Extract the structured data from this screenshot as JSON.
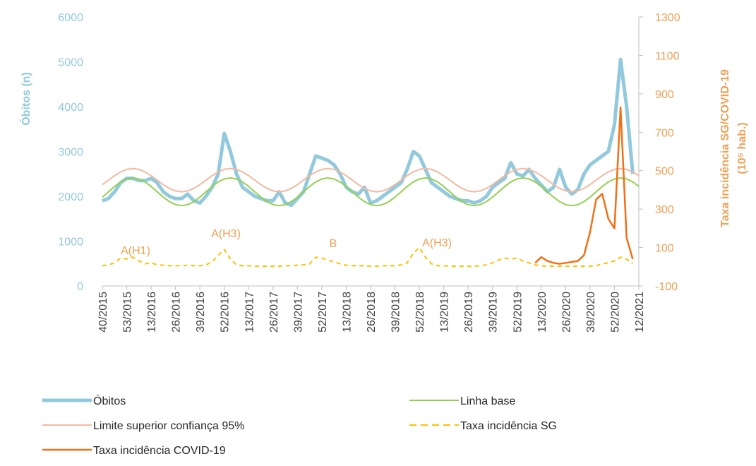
{
  "chart_data": {
    "type": "line",
    "y_label": "Óbitos (n)",
    "y2_label": [
      "Taxa incidência SG/COVID-19",
      "(10⁵ hab.)"
    ],
    "annotations": [
      "A(H1)",
      "A(H3)",
      "B",
      "A(H3)"
    ],
    "categories": [
      "40/2015",
      null,
      null,
      null,
      "53/2015",
      null,
      null,
      null,
      "13/2016",
      null,
      null,
      null,
      "26/2016",
      null,
      null,
      null,
      "39/2016",
      null,
      null,
      null,
      "52/2016",
      null,
      null,
      null,
      "13/2017",
      null,
      null,
      null,
      "26/2017",
      null,
      null,
      null,
      "39/2017",
      null,
      null,
      null,
      "52/2017",
      null,
      null,
      null,
      "13/2018",
      null,
      null,
      null,
      "26/2018",
      null,
      null,
      null,
      "39/2018",
      null,
      null,
      null,
      "52/2018",
      null,
      null,
      null,
      "13/2019",
      null,
      null,
      null,
      "26/2019",
      null,
      null,
      null,
      "39/2019",
      null,
      null,
      null,
      "52/2019",
      null,
      null,
      null,
      "13/2020",
      null,
      null,
      null,
      "26/2020",
      null,
      null,
      null,
      "39/2020",
      null,
      null,
      null,
      "52/2020",
      null,
      null,
      null,
      "12/2021"
    ],
    "ylim": [
      0,
      6000
    ],
    "yticks": [
      0,
      1000,
      2000,
      3000,
      4000,
      5000,
      6000
    ],
    "y2lim": [
      -100,
      1300
    ],
    "y2ticks": [
      -100,
      100,
      300,
      500,
      700,
      900,
      1100,
      1300
    ],
    "series": [
      {
        "name": "Óbitos",
        "color": "#92c9dc",
        "values": [
          1900,
          1950,
          2100,
          2300,
          2400,
          2400,
          2350,
          2350,
          2400,
          2300,
          2100,
          2000,
          1950,
          1950,
          2050,
          1900,
          1850,
          2000,
          2200,
          2500,
          3400,
          3000,
          2500,
          2200,
          2100,
          2000,
          1950,
          1900,
          1900,
          2100,
          1850,
          1800,
          1950,
          2100,
          2500,
          2900,
          2850,
          2800,
          2700,
          2500,
          2200,
          2100,
          2050,
          2200,
          1850,
          1900,
          2000,
          2100,
          2200,
          2300,
          2600,
          3000,
          2900,
          2600,
          2300,
          2200,
          2100,
          2000,
          1950,
          1900,
          1900,
          1850,
          1900,
          2000,
          2200,
          2300,
          2400,
          2750,
          2500,
          2450,
          2600,
          2400,
          2250,
          2100,
          2200,
          2600,
          2200,
          2050,
          2150,
          2500,
          2700,
          2800,
          2900,
          3000,
          3600,
          5050,
          4000,
          2500,
          null
        ]
      },
      {
        "name": "Linha base",
        "color": "#92d050",
        "values": [
          1981,
          2100,
          2219,
          2319,
          2386,
          2410,
          2386,
          2319,
          2219,
          2100,
          1981,
          1881,
          1814,
          1790,
          1814,
          1881,
          1981,
          2100,
          2219,
          2319,
          2386,
          2410,
          2386,
          2319,
          2219,
          2100,
          1981,
          1881,
          1814,
          1790,
          1814,
          1881,
          1981,
          2100,
          2219,
          2319,
          2386,
          2410,
          2386,
          2319,
          2219,
          2100,
          1981,
          1881,
          1814,
          1790,
          1814,
          1881,
          1981,
          2100,
          2219,
          2319,
          2386,
          2410,
          2386,
          2319,
          2219,
          2100,
          1981,
          1881,
          1814,
          1790,
          1814,
          1881,
          1981,
          2100,
          2219,
          2319,
          2386,
          2410,
          2386,
          2319,
          2219,
          2100,
          1981,
          1881,
          1814,
          1790,
          1814,
          1881,
          1981,
          2100,
          2219,
          2319,
          2386,
          2410,
          2386,
          2319,
          2219
        ]
      },
      {
        "name": "Limite superior confiança 95%",
        "color": "#f4b8a0",
        "values": [
          2260,
          2360,
          2460,
          2544,
          2600,
          2620,
          2600,
          2544,
          2460,
          2360,
          2260,
          2176,
          2120,
          2100,
          2120,
          2176,
          2260,
          2360,
          2460,
          2544,
          2600,
          2620,
          2600,
          2544,
          2460,
          2360,
          2260,
          2176,
          2120,
          2100,
          2120,
          2176,
          2260,
          2360,
          2460,
          2544,
          2600,
          2620,
          2600,
          2544,
          2460,
          2360,
          2260,
          2176,
          2120,
          2100,
          2120,
          2176,
          2260,
          2360,
          2460,
          2544,
          2600,
          2620,
          2600,
          2544,
          2460,
          2360,
          2260,
          2176,
          2120,
          2100,
          2120,
          2176,
          2260,
          2360,
          2460,
          2544,
          2600,
          2620,
          2600,
          2544,
          2460,
          2360,
          2260,
          2176,
          2120,
          2100,
          2120,
          2176,
          2260,
          2360,
          2460,
          2544,
          2600,
          2620,
          2600,
          2544,
          2460
        ]
      },
      {
        "name": "Taxa incidência SG",
        "color": "#ffc000",
        "dashed": true,
        "axis": "y2",
        "values": [
          5,
          10,
          20,
          45,
          40,
          50,
          30,
          15,
          20,
          10,
          8,
          5,
          5,
          5,
          8,
          5,
          5,
          10,
          25,
          60,
          90,
          40,
          10,
          5,
          5,
          3,
          3,
          3,
          3,
          3,
          5,
          5,
          8,
          10,
          15,
          50,
          45,
          35,
          25,
          15,
          8,
          5,
          5,
          5,
          3,
          3,
          5,
          5,
          5,
          10,
          20,
          70,
          100,
          50,
          15,
          5,
          5,
          3,
          3,
          3,
          3,
          3,
          5,
          10,
          20,
          35,
          45,
          40,
          45,
          30,
          20,
          10,
          5,
          3,
          3,
          3,
          3,
          3,
          3,
          3,
          3,
          5,
          15,
          20,
          30,
          50,
          40,
          15,
          null
        ]
      },
      {
        "name": "Taxa incidência COVID-19",
        "color": "#f07016",
        "axis": "y2",
        "values": [
          null,
          null,
          null,
          null,
          null,
          null,
          null,
          null,
          null,
          null,
          null,
          null,
          null,
          null,
          null,
          null,
          null,
          null,
          null,
          null,
          null,
          null,
          null,
          null,
          null,
          null,
          null,
          null,
          null,
          null,
          null,
          null,
          null,
          null,
          null,
          null,
          null,
          null,
          null,
          null,
          null,
          null,
          null,
          null,
          null,
          null,
          null,
          null,
          null,
          null,
          null,
          null,
          null,
          null,
          null,
          null,
          null,
          null,
          null,
          null,
          null,
          null,
          null,
          null,
          null,
          null,
          null,
          null,
          null,
          null,
          null,
          20,
          50,
          30,
          20,
          15,
          20,
          25,
          30,
          60,
          180,
          350,
          380,
          250,
          200,
          830,
          150,
          40,
          null
        ]
      }
    ]
  }
}
